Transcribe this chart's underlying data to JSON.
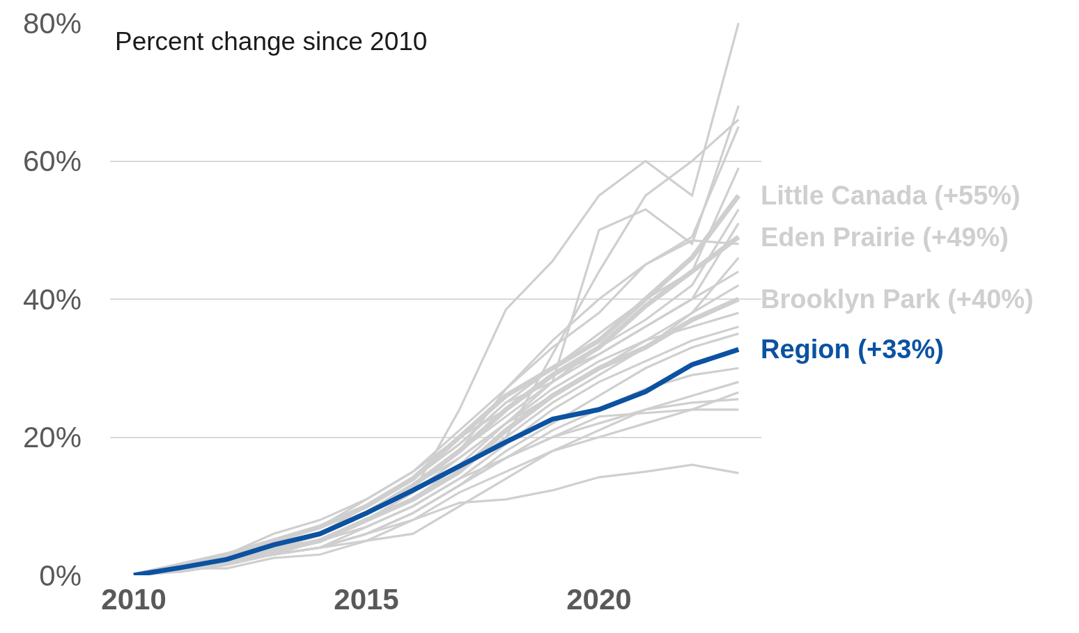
{
  "chart_data": {
    "type": "line",
    "annotations": [
      "Percent change since 2010"
    ],
    "x": [
      2010,
      2011,
      2012,
      2013,
      2014,
      2015,
      2016,
      2017,
      2018,
      2019,
      2020,
      2021,
      2022,
      2023
    ],
    "xlim": [
      2009.49,
      2023.49
    ],
    "xticks": [
      2010,
      2015,
      2020
    ],
    "ylim": [
      0,
      80
    ],
    "yticks": [
      {
        "value": 0,
        "label": "0%"
      },
      {
        "value": 20,
        "label": "20%"
      },
      {
        "value": 40,
        "label": "40%"
      },
      {
        "value": 60,
        "label": "60%"
      },
      {
        "value": 80,
        "label": "80%"
      }
    ],
    "grid": "y",
    "legend": false,
    "marker": "none",
    "line_style": "solid",
    "series": [
      {
        "color": "#d0cfcf",
        "values": [
          0,
          1,
          2,
          4,
          5,
          8,
          12,
          24,
          38.5,
          45.5,
          55,
          60,
          55,
          80
        ]
      },
      {
        "color": "#d0cfcf",
        "values": [
          0,
          1,
          2,
          4,
          5,
          8,
          11,
          16,
          22,
          28,
          50,
          53,
          48,
          68
        ]
      },
      {
        "color": "#d0cfcf",
        "values": [
          0,
          1,
          2,
          3.5,
          5,
          8,
          11,
          15,
          20,
          32,
          44,
          55,
          60,
          66
        ]
      },
      {
        "color": "#d0cfcf",
        "values": [
          0,
          1,
          2,
          4,
          6,
          9,
          13,
          18,
          27,
          34,
          40,
          45,
          49,
          65
        ]
      },
      {
        "color": "#d0cfcf",
        "values": [
          0,
          1,
          2,
          4,
          6,
          10,
          14,
          19,
          25,
          30,
          35,
          40,
          44,
          59
        ]
      },
      {
        "name": "Little Canada (+55%)",
        "color": "#d0cfcf",
        "values": [
          0,
          1.5,
          3,
          5,
          7,
          10,
          14,
          20,
          26,
          30,
          34,
          40,
          46,
          55
        ]
      },
      {
        "color": "#d0cfcf",
        "values": [
          0,
          1,
          2.5,
          4,
          6,
          9,
          13,
          18,
          23,
          28,
          33,
          37,
          42,
          53
        ]
      },
      {
        "color": "#d0cfcf",
        "values": [
          0,
          1.5,
          3,
          6,
          8,
          11,
          15,
          20,
          24,
          29,
          32,
          36,
          40,
          51
        ]
      },
      {
        "name": "Eden Prairie (+49%)",
        "color": "#d0cfcf",
        "values": [
          0,
          1,
          2,
          4,
          6,
          9,
          13,
          18,
          24,
          29,
          33,
          39,
          44,
          49
        ]
      },
      {
        "color": "#d0cfcf",
        "values": [
          0,
          1,
          3,
          5,
          7,
          11,
          15,
          21,
          27,
          33,
          38,
          45,
          48.5,
          48
        ]
      },
      {
        "color": "#d0cfcf",
        "values": [
          0,
          1,
          2,
          4,
          5,
          8,
          11,
          15,
          20,
          25,
          29,
          33,
          38,
          46
        ]
      },
      {
        "color": "#d0cfcf",
        "values": [
          0,
          1,
          2,
          4,
          6,
          10,
          14,
          19,
          25,
          28,
          32,
          36,
          40,
          44
        ]
      },
      {
        "color": "#d0cfcf",
        "values": [
          0,
          1,
          2,
          4,
          6,
          9,
          13,
          17,
          22,
          26,
          30,
          34,
          38,
          42
        ]
      },
      {
        "name": "Brooklyn Park (+40%)",
        "color": "#d0cfcf",
        "values": [
          0,
          1,
          2,
          3.5,
          5,
          8,
          11,
          15,
          21,
          26,
          30,
          33,
          37,
          40
        ]
      },
      {
        "color": "#d0cfcf",
        "values": [
          0,
          1,
          2,
          4,
          5,
          8,
          12,
          17,
          22,
          27,
          31,
          34,
          36,
          38
        ]
      },
      {
        "color": "#d0cfcf",
        "values": [
          0,
          1,
          2,
          3,
          5,
          7,
          10,
          14,
          19,
          24,
          28,
          31,
          34,
          36
        ]
      },
      {
        "color": "#d0cfcf",
        "values": [
          0,
          1,
          2,
          3,
          4,
          6,
          9,
          13,
          18,
          22,
          26,
          30,
          33,
          35
        ]
      },
      {
        "color": "#d0cfcf",
        "values": [
          0,
          0.5,
          1.5,
          3,
          4,
          6,
          9,
          13,
          17,
          21,
          24,
          27,
          29,
          30
        ]
      },
      {
        "color": "#d0cfcf",
        "values": [
          0,
          1,
          2,
          3,
          4,
          7,
          10,
          14,
          17,
          20,
          22,
          24,
          26,
          28
        ]
      },
      {
        "color": "#d0cfcf",
        "values": [
          0,
          1,
          2,
          3,
          4,
          6,
          8,
          12,
          15,
          18,
          20,
          22,
          24,
          26.5
        ]
      },
      {
        "color": "#d0cfcf",
        "values": [
          0,
          1,
          1,
          2.5,
          3,
          5,
          6,
          10,
          14,
          18,
          21,
          24,
          25,
          25.5
        ]
      },
      {
        "color": "#d0cfcf",
        "values": [
          0,
          1,
          2,
          3,
          4,
          6,
          9,
          13,
          17,
          20,
          23,
          23.5,
          24,
          24
        ]
      },
      {
        "color": "#d0cfcf",
        "values": [
          0,
          1,
          2,
          3,
          4,
          5,
          8,
          10.5,
          11,
          12.3,
          14.2,
          15,
          16,
          14.8
        ]
      },
      {
        "name": "Region (+33%)",
        "color": "#0b52a1",
        "values": [
          0,
          1.1,
          2.3,
          4.4,
          6,
          9,
          12.3,
          15.8,
          19.3,
          22.6,
          24,
          26.6,
          30.5,
          32.7
        ]
      }
    ]
  }
}
